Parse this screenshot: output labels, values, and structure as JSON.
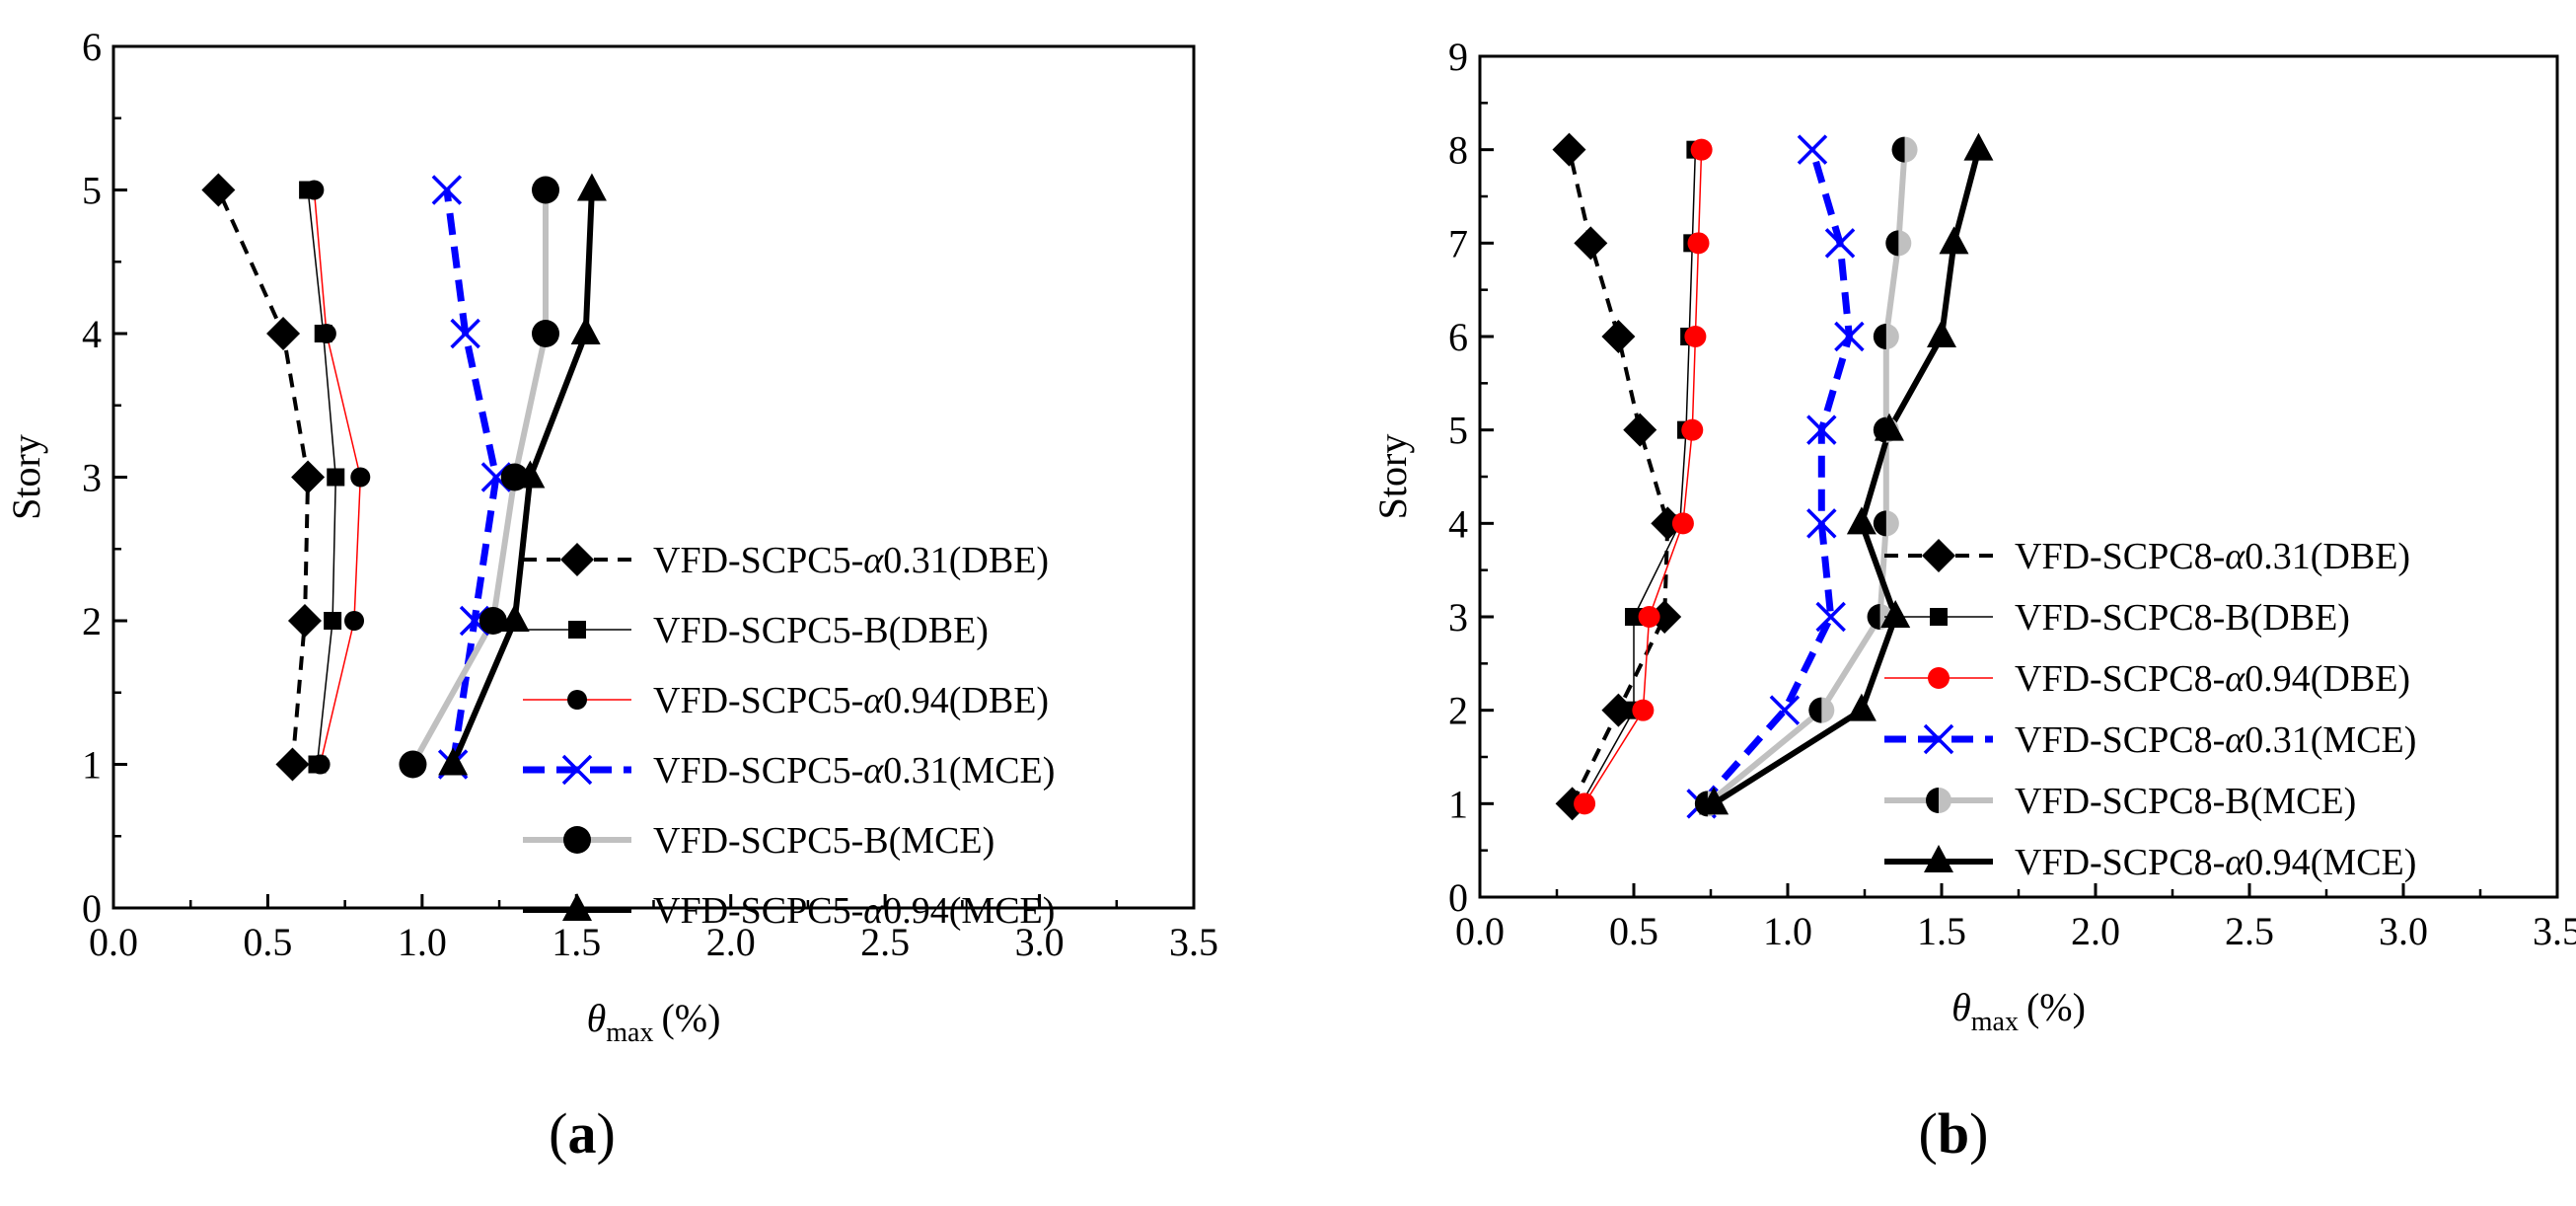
{
  "chart_data": [
    {
      "type": "line",
      "panel_label": "a",
      "xlabel": "(%)",
      "xlabel_symbol": "θ",
      "xlabel_sub": "max",
      "ylabel": "Story",
      "xlim": [
        0,
        3.5
      ],
      "ylim": [
        0,
        6
      ],
      "xticks": [
        "0.0",
        "0.5",
        "1.0",
        "1.5",
        "2.0",
        "2.5",
        "3.0",
        "3.5"
      ],
      "yticks": [
        "0",
        "1",
        "2",
        "3",
        "4",
        "5",
        "6"
      ],
      "grid": false,
      "legend_position": "bottom-right",
      "series": [
        {
          "name": "VFD-SCPC5-α0.31(DBE)",
          "label_pre": "VFD-SCPC5-",
          "label_sym": "α",
          "label_post": "0.31(DBE)",
          "color": "#000000",
          "line": "dashed",
          "marker": "diamond",
          "x": [
            0.58,
            0.62,
            0.63,
            0.55,
            0.34
          ],
          "y": [
            1,
            2,
            3,
            4,
            5
          ]
        },
        {
          "name": "VFD-SCPC5-B(DBE)",
          "label_pre": "VFD-SCPC5-B(DBE)",
          "label_sym": "",
          "label_post": "",
          "color": "#000000",
          "line": "thin",
          "marker": "square",
          "x": [
            0.66,
            0.71,
            0.72,
            0.68,
            0.63
          ],
          "y": [
            1,
            2,
            3,
            4,
            5
          ]
        },
        {
          "name": "VFD-SCPC5-α0.94(DBE)",
          "label_pre": "VFD-SCPC5-",
          "label_sym": "α",
          "label_post": "0.94(DBE)",
          "color": "#ff0000",
          "line": "thin",
          "marker": "circle-small",
          "x": [
            0.67,
            0.78,
            0.8,
            0.69,
            0.65
          ],
          "y": [
            1,
            2,
            3,
            4,
            5
          ]
        },
        {
          "name": "VFD-SCPC5-α0.31(MCE)",
          "label_pre": "VFD-SCPC5-",
          "label_sym": "α",
          "label_post": "0.31(MCE)",
          "color": "#0000ff",
          "line": "dashed-thick",
          "marker": "x",
          "x": [
            1.1,
            1.17,
            1.24,
            1.14,
            1.08
          ],
          "y": [
            1,
            2,
            3,
            4,
            5
          ]
        },
        {
          "name": "VFD-SCPC5-B(MCE)",
          "label_pre": "VFD-SCPC5-B(MCE)",
          "label_sym": "",
          "label_post": "",
          "color": "#c0c0c0",
          "line": "thick",
          "marker": "circle",
          "x": [
            0.97,
            1.23,
            1.3,
            1.4,
            1.4
          ],
          "y": [
            1,
            2,
            3,
            4,
            5
          ]
        },
        {
          "name": "VFD-SCPC5-α0.94(MCE)",
          "label_pre": "VFD-SCPC5-",
          "label_sym": "α",
          "label_post": "0.94(MCE)",
          "color": "#000000",
          "line": "thick",
          "marker": "triangle",
          "x": [
            1.1,
            1.3,
            1.35,
            1.53,
            1.55
          ],
          "y": [
            1,
            2,
            3,
            4,
            5
          ]
        }
      ]
    },
    {
      "type": "line",
      "panel_label": "b",
      "xlabel": "(%)",
      "xlabel_symbol": "θ",
      "xlabel_sub": "max",
      "ylabel": "Story",
      "xlim": [
        0,
        3.5
      ],
      "ylim": [
        0,
        9
      ],
      "xticks": [
        "0.0",
        "0.5",
        "1.0",
        "1.5",
        "2.0",
        "2.5",
        "3.0",
        "3.5"
      ],
      "yticks": [
        "0",
        "1",
        "2",
        "3",
        "4",
        "5",
        "6",
        "7",
        "8",
        "9"
      ],
      "grid": false,
      "legend_position": "bottom-right",
      "series": [
        {
          "name": "VFD-SCPC8-α0.31(DBE)",
          "label_pre": "VFD-SCPC8-",
          "label_sym": "α",
          "label_post": "0.31(DBE)",
          "color": "#000000",
          "line": "dashed",
          "marker": "diamond",
          "x": [
            0.3,
            0.45,
            0.6,
            0.61,
            0.52,
            0.45,
            0.36,
            0.29
          ],
          "y": [
            1,
            2,
            3,
            4,
            5,
            6,
            7,
            8
          ]
        },
        {
          "name": "VFD-SCPC8-B(DBE)",
          "label_pre": "VFD-SCPC8-B(DBE)",
          "label_sym": "",
          "label_post": "",
          "color": "#000000",
          "line": "thin",
          "marker": "square",
          "x": [
            0.33,
            0.5,
            0.5,
            0.65,
            0.67,
            0.68,
            0.69,
            0.7
          ],
          "y": [
            1,
            2,
            3,
            4,
            5,
            6,
            7,
            8
          ]
        },
        {
          "name": "VFD-SCPC8-α0.94(DBE)",
          "label_pre": "VFD-SCPC8-",
          "label_sym": "α",
          "label_post": "0.94(DBE)",
          "color": "#ff0000",
          "line": "thin",
          "marker": "circle-red",
          "x": [
            0.34,
            0.53,
            0.55,
            0.66,
            0.69,
            0.7,
            0.71,
            0.72
          ],
          "y": [
            1,
            2,
            3,
            4,
            5,
            6,
            7,
            8
          ]
        },
        {
          "name": "VFD-SCPC8-α0.31(MCE)",
          "label_pre": "VFD-SCPC8-",
          "label_sym": "α",
          "label_post": "0.31(MCE)",
          "color": "#0000ff",
          "line": "dashed-thick",
          "marker": "x",
          "x": [
            0.72,
            0.99,
            1.14,
            1.11,
            1.11,
            1.2,
            1.17,
            1.08
          ],
          "y": [
            1,
            2,
            3,
            4,
            5,
            6,
            7,
            8
          ]
        },
        {
          "name": "VFD-SCPC8-B(MCE)",
          "label_pre": "VFD-SCPC8-B(MCE)",
          "label_sym": "",
          "label_post": "",
          "color": "#c0c0c0",
          "line": "thick",
          "marker": "half-circle",
          "x": [
            0.74,
            1.11,
            1.3,
            1.32,
            1.32,
            1.32,
            1.36,
            1.38
          ],
          "y": [
            1,
            2,
            3,
            4,
            5,
            6,
            7,
            8
          ]
        },
        {
          "name": "VFD-SCPC8-α0.94(MCE)",
          "label_pre": "VFD-SCPC8-",
          "label_sym": "α",
          "label_post": "0.94(MCE)",
          "color": "#000000",
          "line": "thick",
          "marker": "triangle",
          "x": [
            0.76,
            1.24,
            1.35,
            1.24,
            1.33,
            1.5,
            1.54,
            1.62
          ],
          "y": [
            1,
            2,
            3,
            4,
            5,
            6,
            7,
            8
          ]
        }
      ]
    }
  ]
}
